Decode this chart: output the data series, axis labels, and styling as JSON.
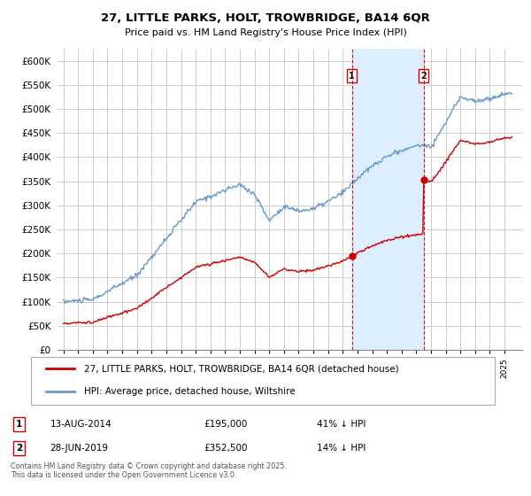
{
  "title1": "27, LITTLE PARKS, HOLT, TROWBRIDGE, BA14 6QR",
  "title2": "Price paid vs. HM Land Registry's House Price Index (HPI)",
  "legend_line1": "27, LITTLE PARKS, HOLT, TROWBRIDGE, BA14 6QR (detached house)",
  "legend_line2": "HPI: Average price, detached house, Wiltshire",
  "label1_date": "13-AUG-2014",
  "label1_price": "£195,000",
  "label1_hpi": "41% ↓ HPI",
  "label2_date": "28-JUN-2019",
  "label2_price": "£352,500",
  "label2_hpi": "14% ↓ HPI",
  "footer": "Contains HM Land Registry data © Crown copyright and database right 2025.\nThis data is licensed under the Open Government Licence v3.0.",
  "hpi_color": "#6699cc",
  "sale_color": "#cc0000",
  "vline_color": "#cc0000",
  "shade_color": "#ddeeff",
  "bg_color": "#ffffff",
  "grid_color": "#cccccc",
  "ylim": [
    0,
    625000
  ],
  "yticks": [
    0,
    50000,
    100000,
    150000,
    200000,
    250000,
    300000,
    350000,
    400000,
    450000,
    500000,
    550000,
    600000
  ],
  "sale1_year": 2014.617,
  "sale1_price": 195000,
  "sale2_year": 2019.49,
  "sale2_price": 352500,
  "vline1_x": 2014.617,
  "vline2_x": 2019.49,
  "xlim_left": 1994.6,
  "xlim_right": 2026.2
}
